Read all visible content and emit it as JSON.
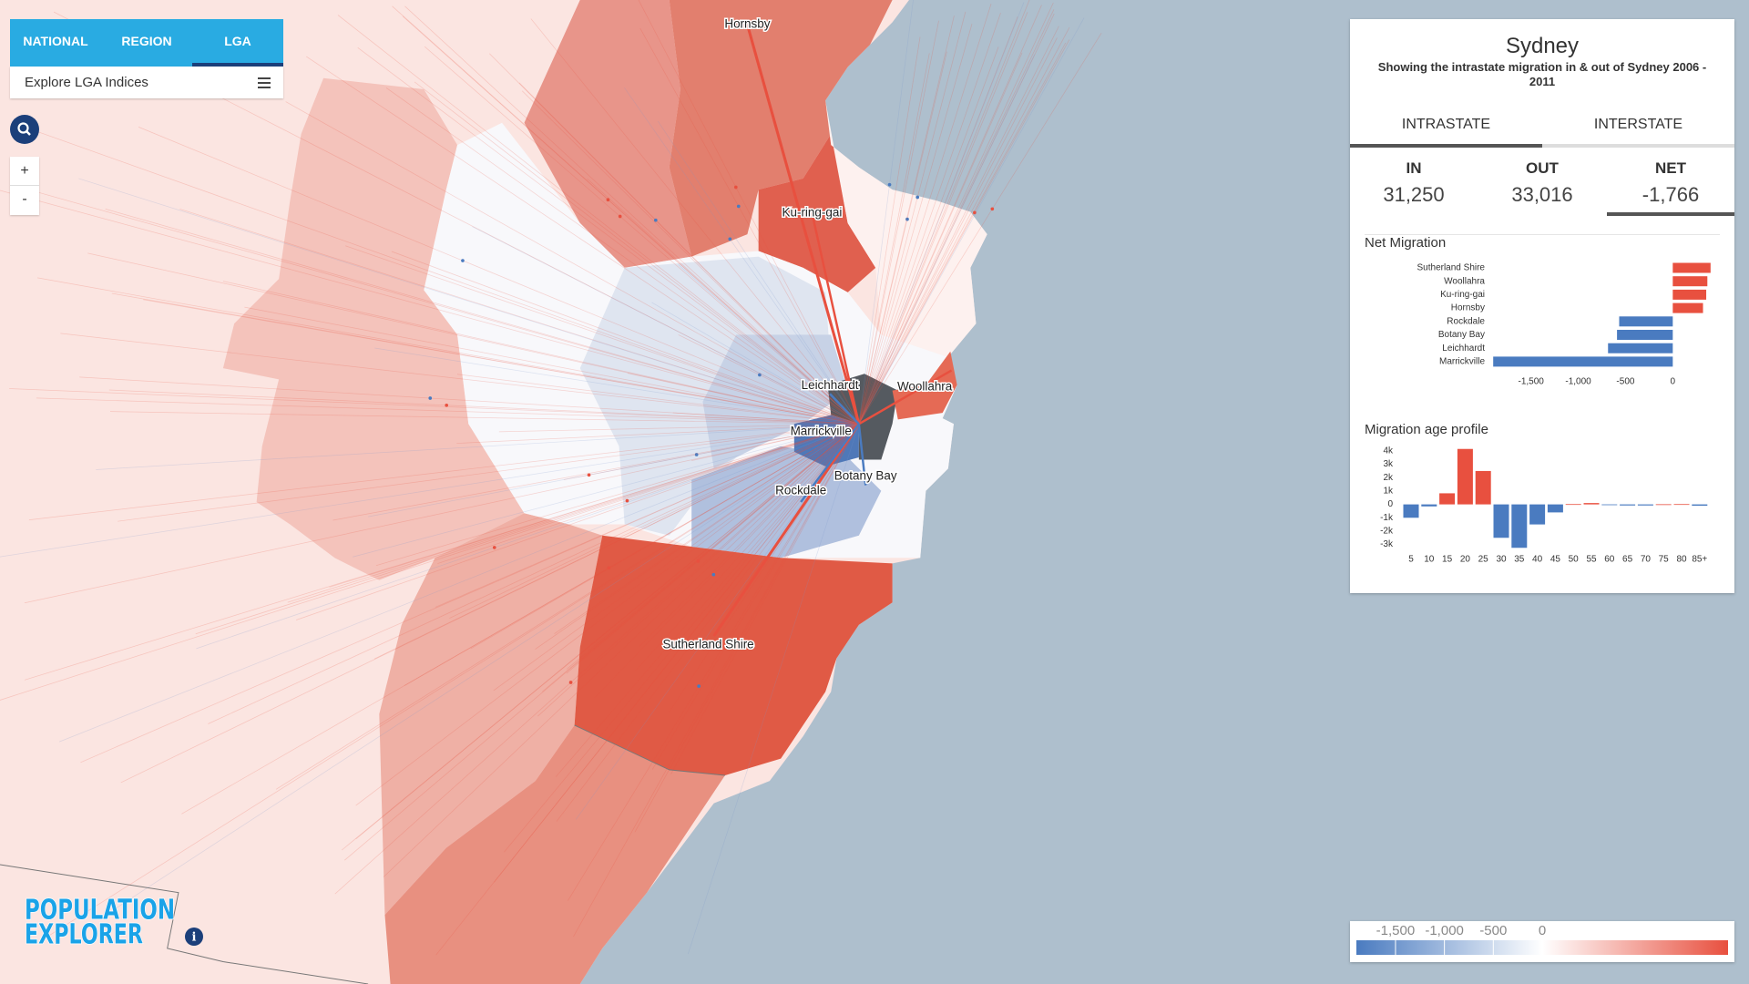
{
  "nav": {
    "tabs": [
      "NATIONAL",
      "REGION",
      "LGA"
    ],
    "active_tab": 2,
    "explore": "Explore LGA Indices",
    "zoom_in": "+",
    "zoom_out": "-"
  },
  "map": {
    "labels": [
      "Hornsby",
      "Ku-ring-gai",
      "Leichhardt",
      "Woollahra",
      "Marrickville",
      "Botany Bay",
      "Rockdale",
      "Sutherland Shire"
    ]
  },
  "logo": {
    "line1": "POPULATION",
    "line2": "EXPLORER"
  },
  "panel": {
    "title": "Sydney",
    "subtitle": "Showing the intrastate migration in & out of Sydney 2006 - 2011",
    "tabs": [
      "INTRASTATE",
      "INTERSTATE"
    ],
    "active_tab": 0,
    "stats": [
      {
        "label": "IN",
        "value": "31,250"
      },
      {
        "label": "OUT",
        "value": "33,016"
      },
      {
        "label": "NET",
        "value": "-1,766"
      }
    ],
    "active_stat": 2
  },
  "net_migration": {
    "type": "bar",
    "title": "Net Migration",
    "categories": [
      "Sutherland Shire",
      "Woollahra",
      "Ku-ring-gai",
      "Hornsby",
      "Rockdale",
      "Botany Bay",
      "Leichhardt",
      "Marrickville"
    ],
    "values": [
      400,
      366,
      354,
      320,
      -567,
      -590,
      -685,
      -1900
    ],
    "pos_color": "#e8503f",
    "neg_color": "#4a7bc0",
    "xlim": [
      -1950,
      450
    ],
    "xticks": [
      {
        "value": -1500,
        "label": "-1,500"
      },
      {
        "value": -1000,
        "label": "-1,000"
      },
      -500,
      0
    ]
  },
  "age_profile": {
    "type": "bar",
    "title": "Migration age profile",
    "categories": [
      "5",
      "10",
      "15",
      "20",
      "25",
      "30",
      "35",
      "40",
      "45",
      "50",
      "55",
      "60",
      "65",
      "70",
      "75",
      "80",
      "85+"
    ],
    "values": [
      -1000,
      -150,
      830,
      4150,
      2500,
      -2500,
      -3250,
      -1500,
      -600,
      20,
      100,
      -30,
      -80,
      -80,
      10,
      20,
      -100
    ],
    "pos_color": "#e8503f",
    "neg_color": "#4a7bc0",
    "ylim": [
      -3300,
      4200
    ],
    "yticks": [
      {
        "value": 4000,
        "label": "4k"
      },
      {
        "value": 3000,
        "label": "3k"
      },
      {
        "value": 2000,
        "label": "2k"
      },
      {
        "value": 1000,
        "label": "1k"
      },
      0,
      {
        "value": -1000,
        "label": "-1k"
      },
      {
        "value": -2000,
        "label": "-2k"
      },
      {
        "value": -3000,
        "label": "-3k"
      }
    ]
  },
  "legend": {
    "colorlim": [
      -1900,
      1900
    ],
    "colors": [
      "#4a7bc0",
      "#ffffff",
      "#e8503f"
    ],
    "ticks": [
      {
        "value": -1500,
        "label": "-1,500"
      },
      {
        "value": -1000,
        "label": "-1,000"
      },
      -500,
      0
    ]
  }
}
